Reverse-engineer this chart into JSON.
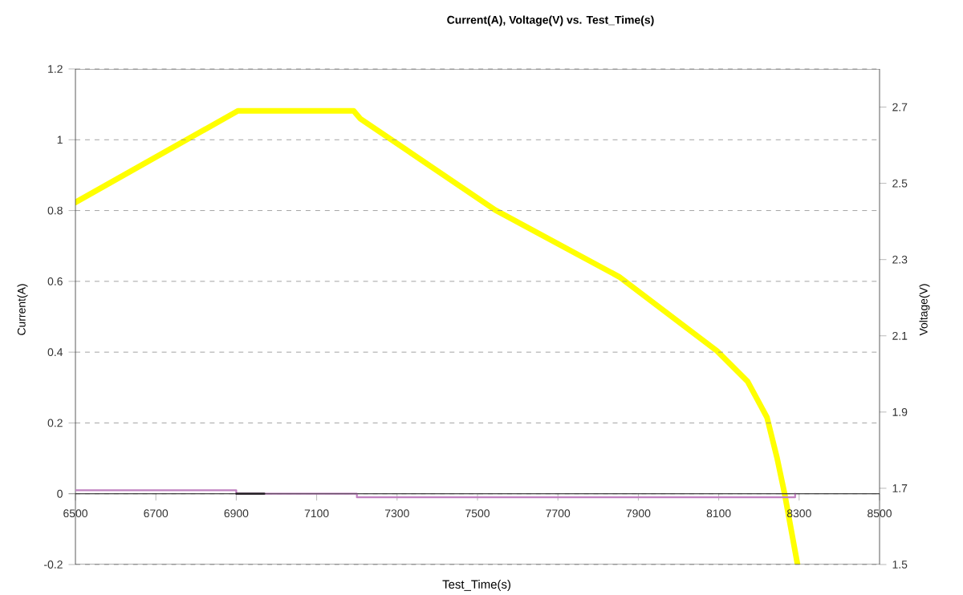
{
  "chart_data": {
    "type": "line",
    "title": "Current(A), Voltage(V) vs. Test_Time(s)",
    "xlabel": "Test_Time(s)",
    "ylabel": "Current(A)",
    "y2label": "Voltage(V)",
    "xlim": [
      6500,
      8500
    ],
    "xticks": [
      6500,
      6700,
      6900,
      7100,
      7300,
      7500,
      7700,
      7900,
      8100,
      8300,
      8500
    ],
    "ylim": [
      -0.2,
      1.2
    ],
    "yticks": [
      -0.2,
      0,
      0.2,
      0.4,
      0.6,
      0.8,
      1,
      1.2
    ],
    "y2lim": [
      1.5,
      2.8
    ],
    "y2ticks": [
      1.5,
      1.7,
      1.9,
      2.1,
      2.3,
      2.5,
      2.7
    ],
    "grid": "y",
    "marker": "none",
    "line_style": "solid",
    "series": [
      {
        "color": "#000000",
        "x": [
          6900,
          6970
        ],
        "values": [
          0,
          0
        ]
      },
      {
        "color": "#c080c0",
        "x": [
          6500,
          6900,
          6900,
          7200,
          7200,
          8290,
          8290
        ],
        "values": [
          0.01,
          0.01,
          0,
          0,
          -0.01,
          -0.01,
          0
        ]
      },
      {
        "color": "#ffff00",
        "axis": "y2",
        "x": [
          6500,
          6904,
          7192,
          7208,
          7544,
          7852,
          8096,
          8172,
          8220,
          8245,
          8264,
          8296
        ],
        "values": [
          2.45,
          2.69,
          2.69,
          2.67,
          2.43,
          2.255,
          2.06,
          1.98,
          1.886,
          1.78,
          1.685,
          1.5
        ]
      }
    ]
  }
}
